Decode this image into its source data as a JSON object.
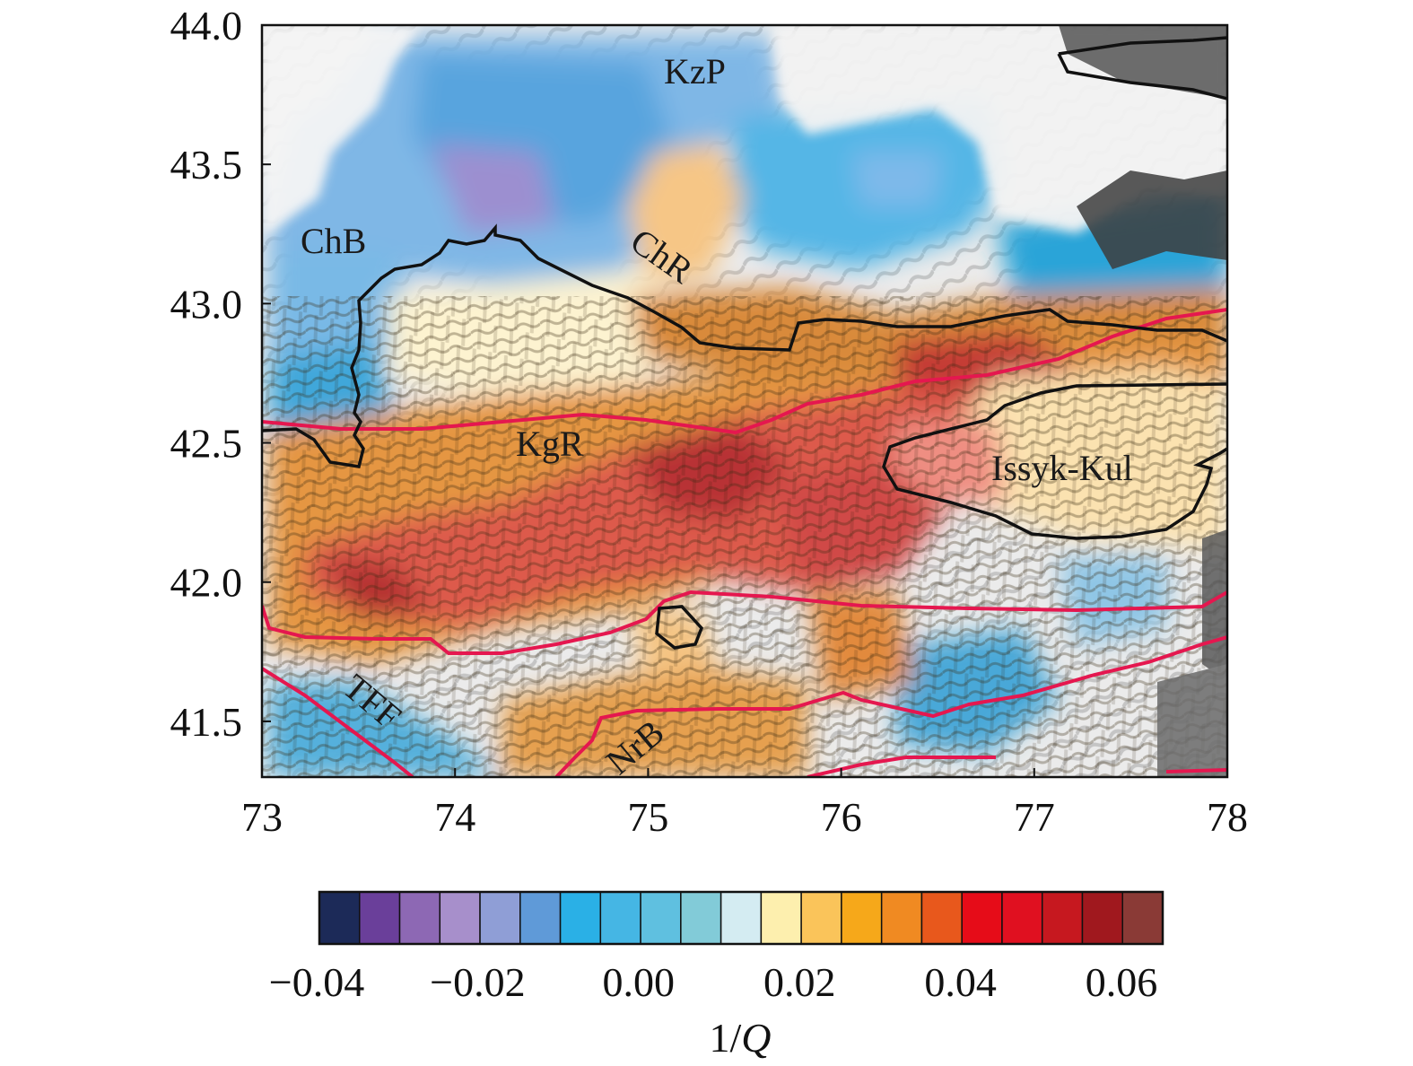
{
  "map": {
    "x_ticks": [
      "73",
      "74",
      "75",
      "76",
      "77",
      "78"
    ],
    "y_ticks": [
      "44.0",
      "43.5",
      "43.0",
      "42.5",
      "42.0",
      "41.5"
    ],
    "x_range": [
      73,
      78
    ],
    "y_range": [
      41.3,
      44.0
    ],
    "region_labels": {
      "kzp": "KzP",
      "chb": "ChB",
      "chr": "ChR",
      "kgr": "KgR",
      "issyk": "Issyk-Kul",
      "tff": "TFF",
      "nrb": "NrB"
    }
  },
  "colorbar": {
    "colors": [
      "#1c2a58",
      "#6a3f9a",
      "#8d68b4",
      "#a78fcb",
      "#8f9ed6",
      "#5f9ad8",
      "#2ab0e6",
      "#45b6e4",
      "#5fc0e0",
      "#82cbd8",
      "#d4ecf2",
      "#fdefae",
      "#fac45a",
      "#f6a81a",
      "#f08a22",
      "#e8581c",
      "#e60c18",
      "#e01020",
      "#c6181f",
      "#a0181e",
      "#8a3a36"
    ],
    "tick_labels": [
      "−0.04",
      "−0.02",
      "0.00",
      "0.02",
      "0.04",
      "0.06"
    ],
    "label_prefix": "1/",
    "label_var": "Q"
  }
}
